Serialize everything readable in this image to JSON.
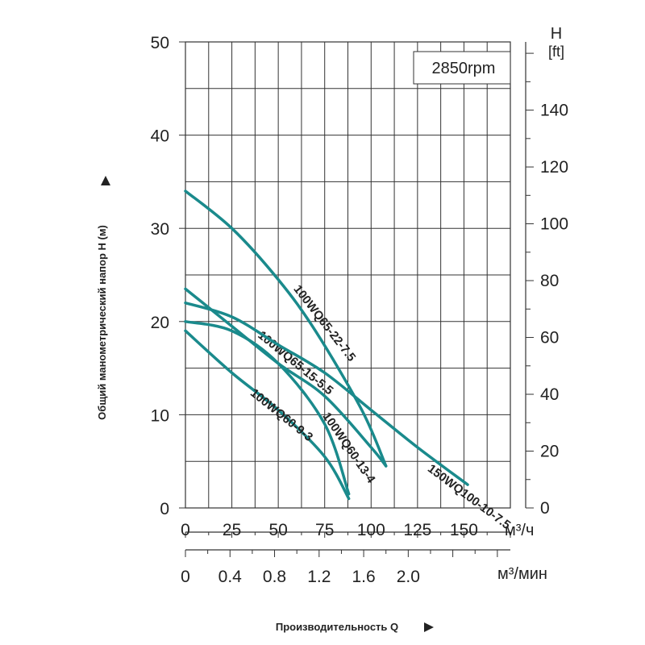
{
  "chart_data": {
    "type": "line",
    "title": "",
    "annotation": "2850rpm",
    "xlabel": "Производительность Q",
    "ylabel": "Общий манометрический напор H (м)",
    "ylabel_right": "H",
    "ylabel_right_unit": "[ft]",
    "xunit_primary": "м³/ч",
    "xunit_secondary": "м³/мин",
    "xlim": [
      0,
      175
    ],
    "ylim": [
      0,
      50
    ],
    "y2lim": [
      0,
      164
    ],
    "grid": true,
    "colors": {
      "curve": "#1a8a8c",
      "grid": "#333333"
    },
    "x_ticks": [
      {
        "value": 0,
        "label": "0"
      },
      {
        "value": 25,
        "label": "25"
      },
      {
        "value": 50,
        "label": "50"
      },
      {
        "value": 75,
        "label": "75"
      },
      {
        "value": 100,
        "label": "100"
      },
      {
        "value": 125,
        "label": "125"
      },
      {
        "value": 150,
        "label": "150"
      }
    ],
    "x2_ticks": [
      {
        "value": 0,
        "label": "0"
      },
      {
        "value": 24,
        "label": "0.4"
      },
      {
        "value": 48,
        "label": "0.8"
      },
      {
        "value": 72,
        "label": "1.2"
      },
      {
        "value": 96,
        "label": "1.6"
      },
      {
        "value": 120,
        "label": "2.0"
      }
    ],
    "y_ticks": [
      {
        "value": 0,
        "label": "0"
      },
      {
        "value": 10,
        "label": "10"
      },
      {
        "value": 20,
        "label": "20"
      },
      {
        "value": 30,
        "label": "30"
      },
      {
        "value": 40,
        "label": "40"
      },
      {
        "value": 50,
        "label": "50"
      }
    ],
    "y2_ticks": [
      {
        "value": 0,
        "label": "0"
      },
      {
        "value": 20,
        "label": "20"
      },
      {
        "value": 40,
        "label": "40"
      },
      {
        "value": 60,
        "label": "60"
      },
      {
        "value": 80,
        "label": "80"
      },
      {
        "value": 100,
        "label": "100"
      },
      {
        "value": 120,
        "label": "120"
      },
      {
        "value": 140,
        "label": "140"
      }
    ],
    "series": [
      {
        "name": "100WQ65-22-7.5",
        "x": [
          0,
          25,
          50,
          70,
          95,
          108
        ],
        "y": [
          34,
          30,
          24.5,
          19,
          10.5,
          4.5
        ]
      },
      {
        "name": "100WQ65-15-5.5",
        "x": [
          0,
          25,
          50,
          75,
          100,
          108
        ],
        "y": [
          23.5,
          19.5,
          15.5,
          12,
          6.5,
          4.5
        ]
      },
      {
        "name": "150WQ100-10-7.5",
        "x": [
          0,
          25,
          50,
          75,
          100,
          125,
          152
        ],
        "y": [
          22,
          20.5,
          17.5,
          14.5,
          10.5,
          6.5,
          2.5
        ]
      },
      {
        "name": "100WQ60-13-4",
        "x": [
          0,
          25,
          50,
          75,
          88
        ],
        "y": [
          20,
          19,
          15.5,
          9,
          1.5
        ]
      },
      {
        "name": "100WQ60-9-3",
        "x": [
          0,
          25,
          50,
          75,
          88
        ],
        "y": [
          19,
          14.5,
          10.5,
          5.5,
          1
        ]
      }
    ]
  }
}
